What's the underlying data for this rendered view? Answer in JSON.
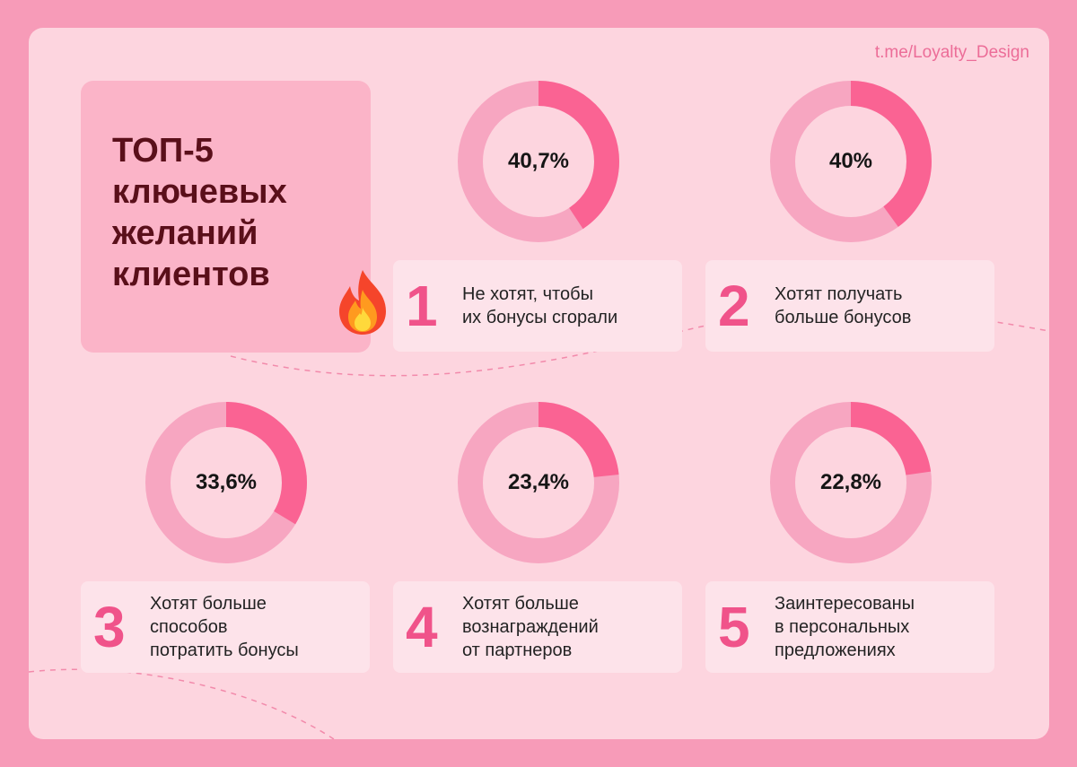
{
  "header": {
    "handle": "t.me/Loyalty_Design"
  },
  "title_box": {
    "title": "ТОП-5 ключевых желаний клиентов"
  },
  "colors": {
    "accent": "#f0538a",
    "ring_bg": "#f7a6c1",
    "ring_fill": "#fa6393",
    "card_bg": "#fdd5df",
    "label_bg": "#fde3ea"
  },
  "chart_data": {
    "type": "donut",
    "items": [
      {
        "rank": "1",
        "label": "Не хотят, чтобы\nих бонусы сгорали",
        "percent_text": "40,7%",
        "value": 40.7
      },
      {
        "rank": "2",
        "label": "Хотят получать\nбольше бонусов",
        "percent_text": "40%",
        "value": 40
      },
      {
        "rank": "3",
        "label": "Хотят больше\nспособов\nпотратить бонусы",
        "percent_text": "33,6%",
        "value": 33.6
      },
      {
        "rank": "4",
        "label": "Хотят больше\nвознаграждений\nот партнеров",
        "percent_text": "23,4%",
        "value": 23.4
      },
      {
        "rank": "5",
        "label": "Заинтересованы\nв персональных\nпредложениях",
        "percent_text": "22,8%",
        "value": 22.8
      }
    ]
  }
}
